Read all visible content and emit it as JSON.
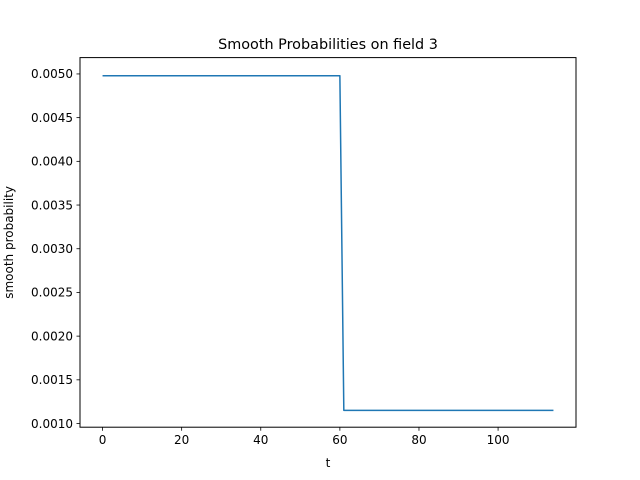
{
  "chart_data": {
    "type": "line",
    "title": "Smooth Probabilities on field 3",
    "xlabel": "t",
    "ylabel": "smooth probability",
    "xlim": [
      -5.7,
      119.7
    ],
    "ylim": [
      0.000958,
      0.005187
    ],
    "x_ticks": [
      0,
      20,
      40,
      60,
      80,
      100
    ],
    "y_ticks": [
      0.001,
      0.0015,
      0.002,
      0.0025,
      0.003,
      0.0035,
      0.004,
      0.0045,
      0.005
    ],
    "x_tick_labels": [
      "0",
      "20",
      "40",
      "60",
      "80",
      "100"
    ],
    "y_tick_labels": [
      "0.0010",
      "0.0015",
      "0.0020",
      "0.0025",
      "0.0030",
      "0.0035",
      "0.0040",
      "0.0045",
      "0.0050"
    ],
    "grid": false,
    "series": [
      {
        "color": "#1f77b4",
        "x": [
          0,
          60,
          61,
          114
        ],
        "y": [
          0.00498,
          0.00498,
          0.00115,
          0.00115
        ]
      }
    ]
  }
}
